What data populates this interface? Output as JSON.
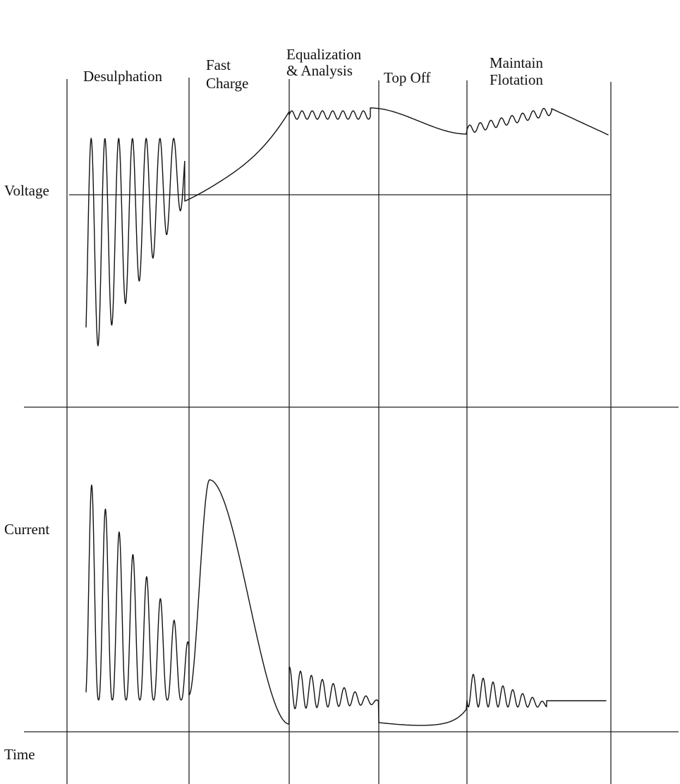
{
  "diagram": {
    "phases": [
      {
        "id": "desulphation",
        "lines": [
          "Desulphation"
        ]
      },
      {
        "id": "fast-charge",
        "lines": [
          "Fast",
          "Charge"
        ]
      },
      {
        "id": "equalization-analysis",
        "lines": [
          "Equalization",
          "& Analysis"
        ]
      },
      {
        "id": "top-off",
        "lines": [
          "Top Off"
        ]
      },
      {
        "id": "maintain-flotation",
        "lines": [
          "Maintain",
          "Flotation"
        ]
      }
    ],
    "axis_labels": {
      "voltage": "Voltage",
      "current": "Current",
      "time": "Time"
    },
    "colors": {
      "line": "#111111",
      "background": "#ffffff"
    }
  }
}
